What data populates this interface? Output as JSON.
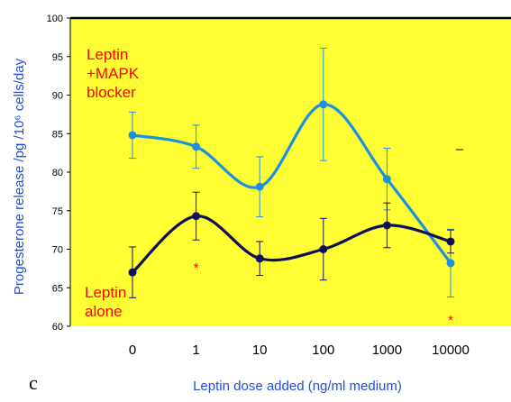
{
  "chart_data": {
    "type": "line",
    "panel_label": "c",
    "xlabel": "Leptin dose added (ng/ml medium)",
    "ylabel": "Progesterone release /pg /10⁶ cells/day",
    "categories": [
      "0",
      "1",
      "10",
      "100",
      "1000",
      "10000"
    ],
    "ylim": [
      60,
      100
    ],
    "yticks": [
      60,
      65,
      70,
      75,
      80,
      85,
      90,
      95,
      100
    ],
    "plot_background": "#ffff33",
    "grid": false,
    "series": [
      {
        "label": "Leptin +MAPK blocker",
        "label_lines": [
          "Leptin",
          "+MAPK",
          "blocker"
        ],
        "color": "#1e90e0",
        "values": [
          84.8,
          83.3,
          78.1,
          88.8,
          79.1,
          68.2
        ],
        "errors": [
          3.0,
          2.8,
          3.9,
          7.3,
          4.0,
          4.4
        ]
      },
      {
        "label": "Leptin alone",
        "label_lines": [
          "Leptin",
          "alone"
        ],
        "color": "#10105a",
        "values": [
          67.0,
          74.3,
          68.8,
          70.0,
          73.1,
          71.0
        ],
        "errors": [
          3.3,
          3.1,
          2.2,
          4.0,
          2.9,
          1.5
        ]
      }
    ],
    "annotations": [
      {
        "text": "*",
        "category_index": 1,
        "y": 68.2
      },
      {
        "text": "*",
        "category_index": 5,
        "y": 61.4
      }
    ]
  }
}
